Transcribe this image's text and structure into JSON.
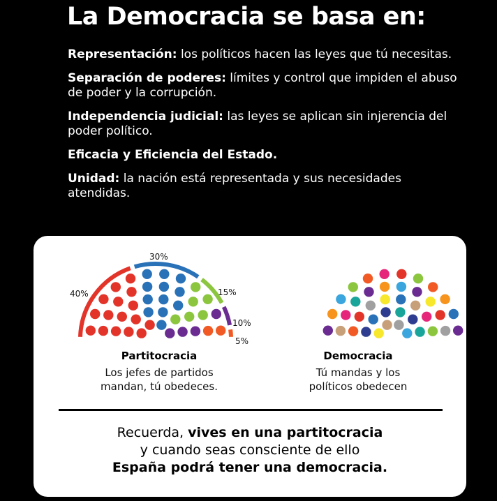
{
  "title": "La Democracia se basa en:",
  "points": [
    {
      "bold": "Representación:",
      "text": " los políticos hacen las leyes que tú necesitas."
    },
    {
      "bold": "Separación de poderes:",
      "text": " límites y control que impiden el abuso de poder y la corrupción."
    },
    {
      "bold": "Independencia judicial:",
      "text": " las leyes se aplican sin injerencia del poder político."
    },
    {
      "bold": "Eficacia y Eficiencia del Estado.",
      "text": ""
    },
    {
      "bold": "Unidad:",
      "text": " la nación está representada y sus necesidades atendidas."
    }
  ],
  "partitocracia": {
    "title": "Partitocracia",
    "caption_line1": "Los jefes de partidos",
    "caption_line2": "mandan, tú obedeces.",
    "percentages": [
      {
        "label": "40%",
        "value": 40,
        "color": "#e3342a"
      },
      {
        "label": "30%",
        "value": 30,
        "color": "#2a72b8"
      },
      {
        "label": "15%",
        "value": 15,
        "color": "#8cc63f"
      },
      {
        "label": "10%",
        "value": 10,
        "color": "#6a2c91"
      },
      {
        "label": "5%",
        "value": 5,
        "color": "#f15a24"
      }
    ]
  },
  "democracia": {
    "title": "Democracia",
    "caption_line1": "Tú mandas y los",
    "caption_line2": "políticos obedecen",
    "colors": [
      "#e3342a",
      "#2a72b8",
      "#8cc63f",
      "#6a2c91",
      "#f15a24",
      "#f7e82d",
      "#e6267a",
      "#3aa6dd",
      "#1aa59a",
      "#a0a0a0",
      "#c7a07a",
      "#2e3d8f",
      "#f7941d"
    ]
  },
  "message": {
    "line1_normal": "Recuerda, ",
    "line1_bold": "vives en una partitocracia",
    "line2": "y cuando seas consciente de ello",
    "line3_bold": "España podrá tener una democracia."
  }
}
